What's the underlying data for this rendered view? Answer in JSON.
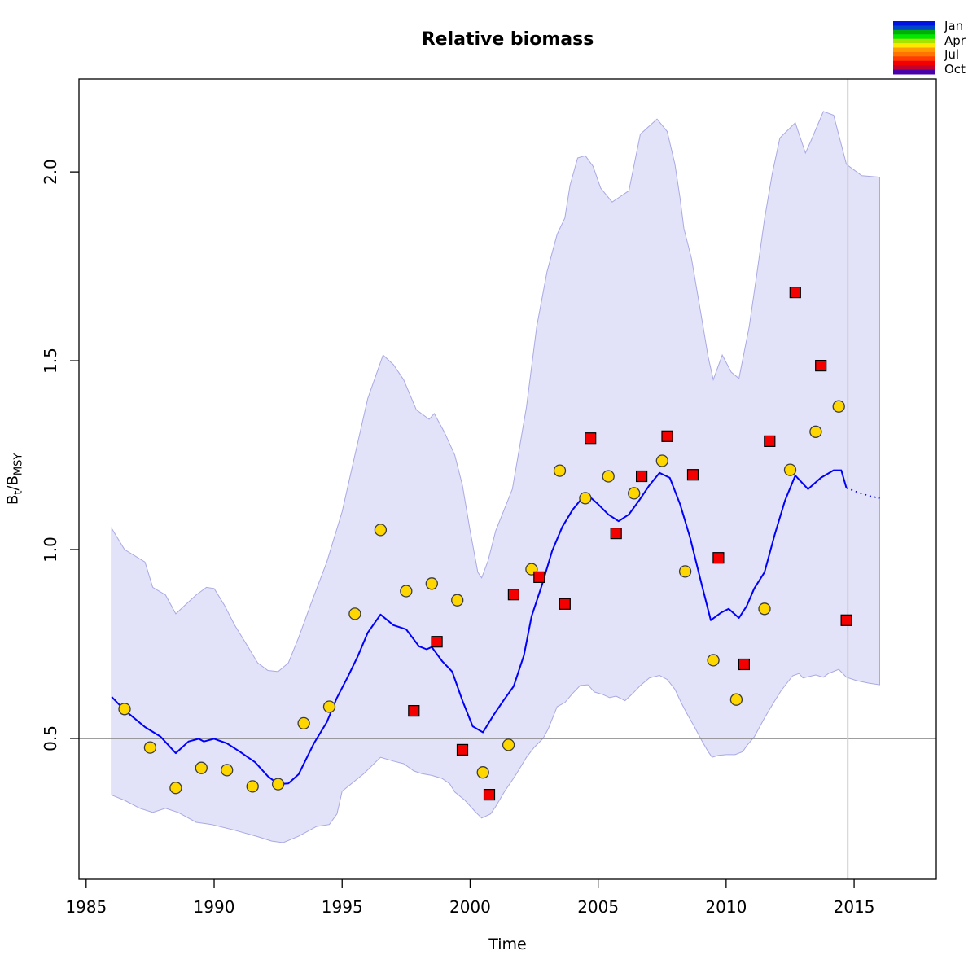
{
  "chart_data": {
    "type": "line",
    "title": "Relative biomass",
    "xlabel": "Time",
    "ylabel": {
      "b1": "B",
      "s1": "t",
      "sep": "/",
      "b2": "B",
      "s2": "MSY"
    },
    "xlim": [
      1984.72,
      2018.21
    ],
    "ylim": [
      0.127,
      2.246
    ],
    "x_ticks": [
      1985,
      1990,
      1995,
      2000,
      2005,
      2010,
      2015
    ],
    "y_ticks": [
      0.5,
      1.0,
      1.5,
      2.0
    ],
    "grid": false,
    "reference_lines": {
      "horizontal_y": 0.5,
      "vertical_x": 2014.75
    },
    "forecast_start": 2014.7,
    "series": [
      {
        "name": "estimate",
        "kind": "line",
        "color": "#0000fa",
        "points": [
          [
            1986.0,
            0.61
          ],
          [
            1986.5,
            0.575
          ],
          [
            1987.3,
            0.53
          ],
          [
            1987.9,
            0.505
          ],
          [
            1988.5,
            0.461
          ],
          [
            1989.0,
            0.492
          ],
          [
            1989.4,
            0.499
          ],
          [
            1989.6,
            0.492
          ],
          [
            1990.0,
            0.499
          ],
          [
            1990.5,
            0.487
          ],
          [
            1991.0,
            0.465
          ],
          [
            1991.6,
            0.437
          ],
          [
            1992.1,
            0.4
          ],
          [
            1992.5,
            0.379
          ],
          [
            1992.9,
            0.381
          ],
          [
            1993.3,
            0.405
          ],
          [
            1993.9,
            0.487
          ],
          [
            1994.4,
            0.543
          ],
          [
            1994.8,
            0.608
          ],
          [
            1995.2,
            0.66
          ],
          [
            1995.6,
            0.716
          ],
          [
            1996.0,
            0.78
          ],
          [
            1996.5,
            0.828
          ],
          [
            1997.0,
            0.8
          ],
          [
            1997.5,
            0.789
          ],
          [
            1998.0,
            0.744
          ],
          [
            1998.3,
            0.736
          ],
          [
            1998.5,
            0.742
          ],
          [
            1998.9,
            0.705
          ],
          [
            1999.3,
            0.677
          ],
          [
            1999.7,
            0.6
          ],
          [
            2000.1,
            0.532
          ],
          [
            2000.5,
            0.516
          ],
          [
            2000.9,
            0.56
          ],
          [
            2001.3,
            0.6
          ],
          [
            2001.7,
            0.638
          ],
          [
            2002.1,
            0.72
          ],
          [
            2002.4,
            0.823
          ],
          [
            2002.8,
            0.905
          ],
          [
            2003.2,
            0.996
          ],
          [
            2003.6,
            1.06
          ],
          [
            2004.0,
            1.105
          ],
          [
            2004.3,
            1.13
          ],
          [
            2004.6,
            1.144
          ],
          [
            2005.0,
            1.12
          ],
          [
            2005.4,
            1.093
          ],
          [
            2005.8,
            1.075
          ],
          [
            2006.2,
            1.093
          ],
          [
            2006.6,
            1.13
          ],
          [
            2007.0,
            1.17
          ],
          [
            2007.4,
            1.203
          ],
          [
            2007.8,
            1.19
          ],
          [
            2008.2,
            1.12
          ],
          [
            2008.6,
            1.03
          ],
          [
            2009.0,
            0.92
          ],
          [
            2009.4,
            0.813
          ],
          [
            2009.8,
            0.833
          ],
          [
            2010.1,
            0.843
          ],
          [
            2010.5,
            0.819
          ],
          [
            2010.8,
            0.85
          ],
          [
            2011.1,
            0.897
          ],
          [
            2011.5,
            0.94
          ],
          [
            2011.9,
            1.04
          ],
          [
            2012.3,
            1.13
          ],
          [
            2012.7,
            1.196
          ],
          [
            2013.2,
            1.16
          ],
          [
            2013.7,
            1.19
          ],
          [
            2014.2,
            1.21
          ],
          [
            2014.5,
            1.21
          ],
          [
            2014.7,
            1.163
          ]
        ]
      },
      {
        "name": "estimate-forecast",
        "kind": "dotted-line",
        "color": "#0000fa",
        "points": [
          [
            2014.7,
            1.163
          ],
          [
            2015.2,
            1.15
          ],
          [
            2015.6,
            1.142
          ],
          [
            2016.0,
            1.136
          ]
        ]
      },
      {
        "name": "confidence-band",
        "kind": "band",
        "fill": "#e2e2f8",
        "edge": "#a9a9e4",
        "upper": [
          [
            1986.0,
            1.056
          ],
          [
            1986.5,
            1.0
          ],
          [
            1987.3,
            0.967
          ],
          [
            1987.6,
            0.9
          ],
          [
            1988.1,
            0.88
          ],
          [
            1988.5,
            0.83
          ],
          [
            1988.9,
            0.855
          ],
          [
            1989.3,
            0.88
          ],
          [
            1989.7,
            0.9
          ],
          [
            1990.0,
            0.897
          ],
          [
            1990.4,
            0.853
          ],
          [
            1990.8,
            0.8
          ],
          [
            1991.3,
            0.745
          ],
          [
            1991.7,
            0.7
          ],
          [
            1992.1,
            0.68
          ],
          [
            1992.5,
            0.677
          ],
          [
            1992.9,
            0.7
          ],
          [
            1993.3,
            0.767
          ],
          [
            1993.8,
            0.86
          ],
          [
            1994.4,
            0.967
          ],
          [
            1995.0,
            1.1
          ],
          [
            1995.5,
            1.25
          ],
          [
            1996.0,
            1.4
          ],
          [
            1996.6,
            1.515
          ],
          [
            1997.0,
            1.49
          ],
          [
            1997.4,
            1.45
          ],
          [
            1997.9,
            1.37
          ],
          [
            1998.4,
            1.345
          ],
          [
            1998.6,
            1.36
          ],
          [
            1999.0,
            1.31
          ],
          [
            1999.4,
            1.25
          ],
          [
            1999.7,
            1.17
          ],
          [
            2000.0,
            1.05
          ],
          [
            2000.3,
            0.94
          ],
          [
            2000.45,
            0.925
          ],
          [
            2000.7,
            0.97
          ],
          [
            2001.0,
            1.05
          ],
          [
            2001.65,
            1.16
          ],
          [
            2002.2,
            1.377
          ],
          [
            2002.6,
            1.59
          ],
          [
            2003.0,
            1.735
          ],
          [
            2003.4,
            1.835
          ],
          [
            2003.7,
            1.878
          ],
          [
            2003.9,
            1.964
          ],
          [
            2004.2,
            2.037
          ],
          [
            2004.5,
            2.043
          ],
          [
            2004.8,
            2.015
          ],
          [
            2005.1,
            1.957
          ],
          [
            2005.55,
            1.92
          ],
          [
            2006.2,
            1.95
          ],
          [
            2006.65,
            2.1
          ],
          [
            2007.3,
            2.14
          ],
          [
            2007.7,
            2.107
          ],
          [
            2008.0,
            2.02
          ],
          [
            2008.2,
            1.93
          ],
          [
            2008.35,
            1.85
          ],
          [
            2008.65,
            1.77
          ],
          [
            2008.9,
            1.67
          ],
          [
            2009.1,
            1.59
          ],
          [
            2009.3,
            1.51
          ],
          [
            2009.5,
            1.45
          ],
          [
            2009.85,
            1.515
          ],
          [
            2010.2,
            1.47
          ],
          [
            2010.5,
            1.453
          ],
          [
            2010.9,
            1.59
          ],
          [
            2011.2,
            1.73
          ],
          [
            2011.5,
            1.875
          ],
          [
            2011.8,
            1.995
          ],
          [
            2012.1,
            2.09
          ],
          [
            2012.7,
            2.13
          ],
          [
            2013.1,
            2.05
          ],
          [
            2013.3,
            2.08
          ],
          [
            2013.8,
            2.16
          ],
          [
            2014.2,
            2.15
          ],
          [
            2014.7,
            2.02
          ],
          [
            2015.3,
            1.99
          ],
          [
            2016.0,
            1.986
          ]
        ],
        "lower": [
          [
            1986.0,
            0.35
          ],
          [
            1986.5,
            0.336
          ],
          [
            1987.1,
            0.315
          ],
          [
            1987.6,
            0.304
          ],
          [
            1988.1,
            0.315
          ],
          [
            1988.6,
            0.304
          ],
          [
            1989.3,
            0.278
          ],
          [
            1989.9,
            0.272
          ],
          [
            1990.8,
            0.257
          ],
          [
            1991.7,
            0.24
          ],
          [
            1992.25,
            0.228
          ],
          [
            1992.7,
            0.224
          ],
          [
            1993.3,
            0.241
          ],
          [
            1994.0,
            0.267
          ],
          [
            1994.5,
            0.272
          ],
          [
            1994.8,
            0.3
          ],
          [
            1995.0,
            0.36
          ],
          [
            1995.85,
            0.407
          ],
          [
            1996.5,
            0.45
          ],
          [
            1997.0,
            0.44
          ],
          [
            1997.4,
            0.433
          ],
          [
            1997.8,
            0.414
          ],
          [
            1998.1,
            0.407
          ],
          [
            1998.5,
            0.402
          ],
          [
            1998.9,
            0.394
          ],
          [
            1999.2,
            0.38
          ],
          [
            1999.4,
            0.358
          ],
          [
            1999.8,
            0.336
          ],
          [
            2000.2,
            0.306
          ],
          [
            2000.45,
            0.289
          ],
          [
            2000.8,
            0.3
          ],
          [
            2001.0,
            0.32
          ],
          [
            2001.35,
            0.36
          ],
          [
            2001.75,
            0.4
          ],
          [
            2002.2,
            0.45
          ],
          [
            2002.5,
            0.476
          ],
          [
            2002.85,
            0.5
          ],
          [
            2003.05,
            0.525
          ],
          [
            2003.4,
            0.584
          ],
          [
            2003.7,
            0.595
          ],
          [
            2004.0,
            0.619
          ],
          [
            2004.3,
            0.64
          ],
          [
            2004.6,
            0.642
          ],
          [
            2004.85,
            0.623
          ],
          [
            2005.2,
            0.616
          ],
          [
            2005.45,
            0.608
          ],
          [
            2005.7,
            0.612
          ],
          [
            2006.05,
            0.6
          ],
          [
            2006.35,
            0.619
          ],
          [
            2006.65,
            0.64
          ],
          [
            2007.0,
            0.66
          ],
          [
            2007.4,
            0.667
          ],
          [
            2007.7,
            0.656
          ],
          [
            2008.0,
            0.63
          ],
          [
            2008.25,
            0.594
          ],
          [
            2008.5,
            0.562
          ],
          [
            2008.75,
            0.532
          ],
          [
            2009.05,
            0.494
          ],
          [
            2009.3,
            0.465
          ],
          [
            2009.45,
            0.45
          ],
          [
            2009.7,
            0.455
          ],
          [
            2010.0,
            0.457
          ],
          [
            2010.35,
            0.457
          ],
          [
            2010.65,
            0.465
          ],
          [
            2010.8,
            0.48
          ],
          [
            2011.1,
            0.504
          ],
          [
            2011.5,
            0.554
          ],
          [
            2011.85,
            0.594
          ],
          [
            2012.15,
            0.627
          ],
          [
            2012.6,
            0.666
          ],
          [
            2012.85,
            0.672
          ],
          [
            2013.0,
            0.66
          ],
          [
            2013.5,
            0.668
          ],
          [
            2013.8,
            0.662
          ],
          [
            2014.0,
            0.672
          ],
          [
            2014.4,
            0.683
          ],
          [
            2014.7,
            0.662
          ],
          [
            2015.1,
            0.653
          ],
          [
            2015.6,
            0.646
          ],
          [
            2016.0,
            0.642
          ]
        ]
      },
      {
        "name": "survey-index-circles",
        "kind": "scatter-circle",
        "fill": "#ffd700",
        "stroke": "#3c3c3c",
        "points": [
          [
            1986.5,
            0.578
          ],
          [
            1987.5,
            0.476
          ],
          [
            1988.5,
            0.369
          ],
          [
            1989.5,
            0.422
          ],
          [
            1990.5,
            0.416
          ],
          [
            1991.5,
            0.373
          ],
          [
            1992.5,
            0.379
          ],
          [
            1993.5,
            0.54
          ],
          [
            1994.5,
            0.584
          ],
          [
            1995.5,
            0.83
          ],
          [
            1996.5,
            1.052
          ],
          [
            1997.5,
            0.89
          ],
          [
            1998.5,
            0.91
          ],
          [
            1999.5,
            0.866
          ],
          [
            2000.5,
            0.41
          ],
          [
            2001.5,
            0.483
          ],
          [
            2002.4,
            0.948
          ],
          [
            2003.5,
            1.209
          ],
          [
            2004.5,
            1.136
          ],
          [
            2005.4,
            1.194
          ],
          [
            2006.4,
            1.149
          ],
          [
            2007.5,
            1.235
          ],
          [
            2008.4,
            0.942
          ],
          [
            2009.5,
            0.707
          ],
          [
            2010.4,
            0.603
          ],
          [
            2011.5,
            0.843
          ],
          [
            2012.5,
            1.211
          ],
          [
            2013.5,
            1.312
          ],
          [
            2014.4,
            1.379
          ]
        ]
      },
      {
        "name": "survey-index-squares",
        "kind": "scatter-square",
        "fill": "#f40000",
        "stroke": "#000000",
        "points": [
          [
            1997.8,
            0.573
          ],
          [
            1998.7,
            0.756
          ],
          [
            1999.7,
            0.47
          ],
          [
            2000.75,
            0.351
          ],
          [
            2001.7,
            0.881
          ],
          [
            2002.7,
            0.927
          ],
          [
            2003.7,
            0.856
          ],
          [
            2004.7,
            1.295
          ],
          [
            2005.7,
            1.043
          ],
          [
            2006.7,
            1.194
          ],
          [
            2007.7,
            1.3
          ],
          [
            2008.7,
            1.198
          ],
          [
            2009.7,
            0.978
          ],
          [
            2010.7,
            0.696
          ],
          [
            2011.7,
            1.287
          ],
          [
            2012.7,
            1.681
          ],
          [
            2013.7,
            1.487
          ],
          [
            2014.7,
            0.813
          ]
        ]
      }
    ],
    "season_legend": {
      "labels": [
        "Jan",
        "Apr",
        "Jul",
        "Oct"
      ],
      "colors": [
        "#0013e1",
        "#0046c8",
        "#00ae0b",
        "#00e800",
        "#a7e300",
        "#ffe800",
        "#ff9d00",
        "#ff7300",
        "#ff3b00",
        "#f40000",
        "#c4002f",
        "#4a00a8"
      ],
      "position": "top-right"
    },
    "colors": {
      "band_fill": "#e2e2f8",
      "band_edge": "#a9a9e4",
      "line": "#0000fa",
      "hline": "#7f7f7f",
      "vline": "#cfcfcf",
      "box": "#000000"
    }
  }
}
